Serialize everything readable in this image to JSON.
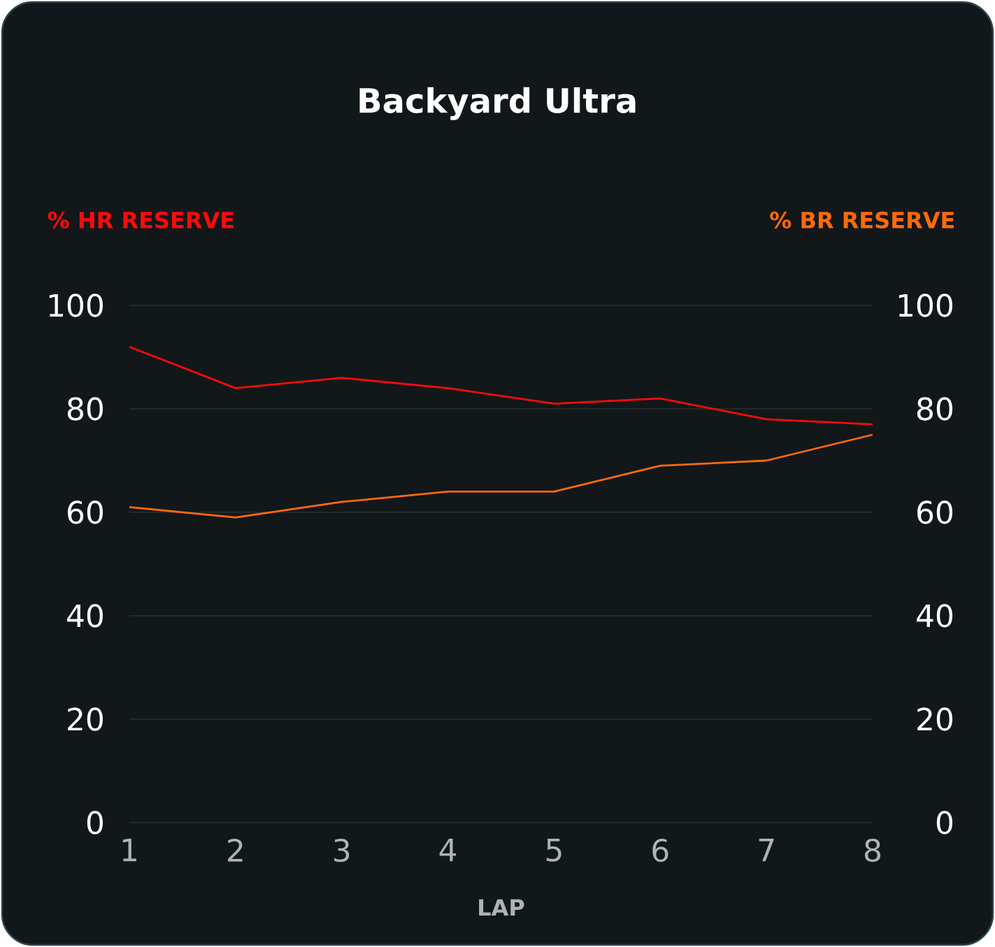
{
  "chart_data": {
    "type": "line",
    "title": "Backyard Ultra",
    "xlabel": "LAP",
    "ylabel": "% HR RESERVE",
    "y2label": "% BR RESERVE",
    "categories": [
      "1",
      "2",
      "3",
      "4",
      "5",
      "6",
      "7",
      "8"
    ],
    "series": [
      {
        "color": "#ff0a0a",
        "values": [
          92,
          84,
          86,
          84,
          81,
          82,
          78,
          77
        ]
      },
      {
        "color": "#ff6a0a",
        "axis": "y2",
        "values": [
          61,
          59,
          62,
          64,
          64,
          69,
          70,
          75
        ]
      }
    ],
    "ylim": [
      0,
      100
    ],
    "yticks": [
      0,
      20,
      40,
      60,
      80,
      100
    ],
    "y2lim": [
      0,
      100
    ],
    "y2ticks": [
      0,
      20,
      40,
      60,
      80,
      100
    ],
    "grid": "y"
  }
}
